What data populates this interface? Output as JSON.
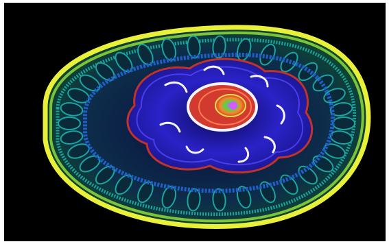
{
  "image": {
    "subject": "fractal-spiral-egg",
    "background": "#000000",
    "watermark_text": "",
    "colors": {
      "outer_ring": "#e8f03a",
      "green_ring": "#7cc23a",
      "teal_ring": "#1aa6a0",
      "blue_band": "#1f5fc8",
      "deep_blue": "#2a1fb4",
      "red_trim": "#c0332a",
      "white_swirl": "#f4f4ff",
      "core_red": "#e23b2a",
      "core_green": "#56d24a",
      "core_magenta": "#d35cff"
    }
  }
}
